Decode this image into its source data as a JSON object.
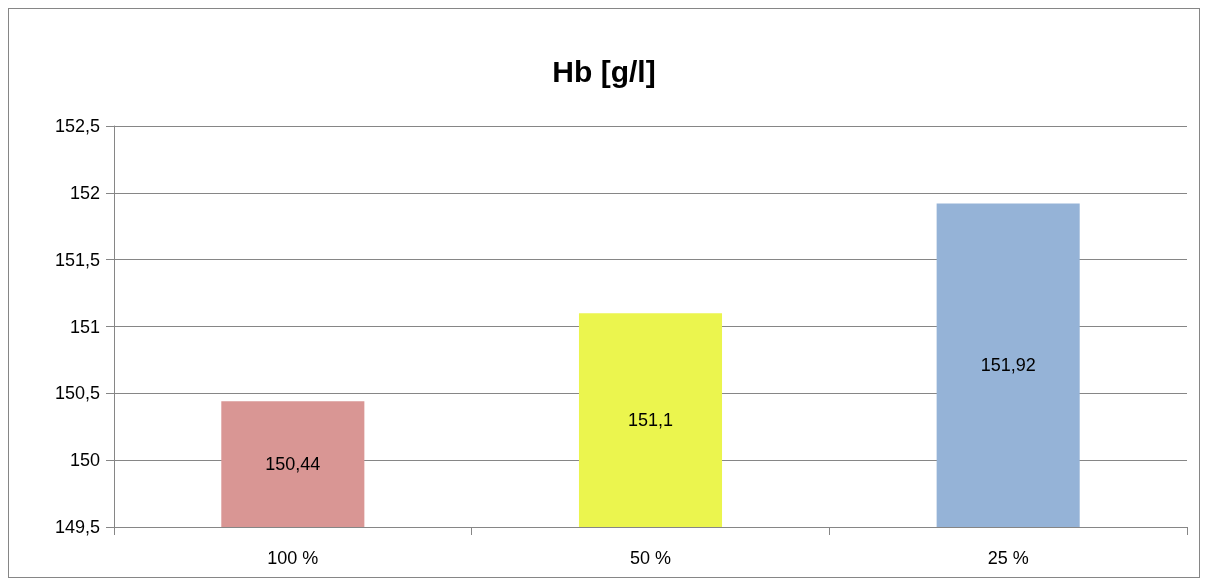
{
  "chart_data": {
    "type": "bar",
    "title": "Hb [g/l]",
    "categories": [
      "100 %",
      "50 %",
      "25 %"
    ],
    "values": [
      150.44,
      151.1,
      151.92
    ],
    "colors": [
      "#d99694",
      "#ebf54e",
      "#95b3d7"
    ],
    "value_labels": [
      "150,44",
      "151,1",
      "151,92"
    ],
    "ylim": [
      149.5,
      152.5
    ],
    "yticks": [
      {
        "value": 149.5,
        "label": "149,5"
      },
      150,
      {
        "value": 150.5,
        "label": "150,5"
      },
      151,
      {
        "value": 151.5,
        "label": "151,5"
      },
      152,
      {
        "value": 152.5,
        "label": "152,5"
      }
    ],
    "grid": "y"
  }
}
